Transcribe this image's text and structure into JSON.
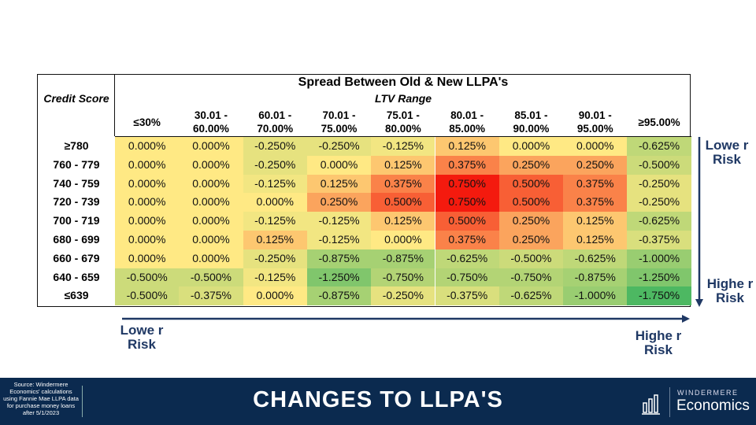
{
  "chart_data": {
    "type": "heatmap",
    "title": "Spread Between Old & New LLPA's",
    "xlabel": "LTV Range",
    "ylabel": "Credit Score",
    "columns": [
      "≤30%",
      "30.01 - 60.00%",
      "60.01 - 70.00%",
      "70.01 - 75.00%",
      "75.01 - 80.00%",
      "80.01 - 85.00%",
      "85.01 - 90.00%",
      "90.01 - 95.00%",
      "≥95.00%"
    ],
    "rows": [
      "≥780",
      "760 - 779",
      "740 - 759",
      "720 - 739",
      "700 - 719",
      "680 - 699",
      "660 - 679",
      "640 - 659",
      "≤639"
    ],
    "values": [
      [
        0,
        0,
        -0.25,
        -0.25,
        -0.125,
        0.125,
        0,
        0,
        -0.625
      ],
      [
        0,
        0,
        -0.25,
        0,
        0.125,
        0.375,
        0.25,
        0.25,
        -0.5
      ],
      [
        0,
        0,
        -0.125,
        0.125,
        0.375,
        0.75,
        0.5,
        0.375,
        -0.25
      ],
      [
        0,
        0,
        0,
        0.25,
        0.5,
        0.75,
        0.5,
        0.375,
        -0.25
      ],
      [
        0,
        0,
        -0.125,
        -0.125,
        0.125,
        0.5,
        0.25,
        0.125,
        -0.625
      ],
      [
        0,
        0,
        0.125,
        -0.125,
        0,
        0.375,
        0.25,
        0.125,
        -0.375
      ],
      [
        0,
        0,
        -0.25,
        -0.875,
        -0.875,
        -0.625,
        -0.5,
        -0.625,
        -1
      ],
      [
        -0.5,
        -0.5,
        -0.125,
        -1.25,
        -0.75,
        -0.75,
        -0.75,
        -0.875,
        -1.25
      ],
      [
        -0.5,
        -0.375,
        0,
        -0.875,
        -0.25,
        -0.375,
        -0.625,
        -1,
        -1.75
      ]
    ],
    "unit": "%",
    "color_scale": {
      "min": "#4db862",
      "mid": "#ffe984",
      "max": "#f41a0e"
    }
  },
  "annotations": {
    "lower_risk": "Lowe r Risk",
    "higher_risk": "Highe r Risk",
    "arrow_color": "#1f3864"
  },
  "footer": {
    "source": "Source: Windermere Economics' calculations using Fannie Mae LLPA data for purchase money loans after 5/1/2023",
    "title": "CHANGES TO LLPA'S",
    "brand_top": "WINDERMERE",
    "brand_bottom": "Economics",
    "background": "#0b2a4f"
  }
}
